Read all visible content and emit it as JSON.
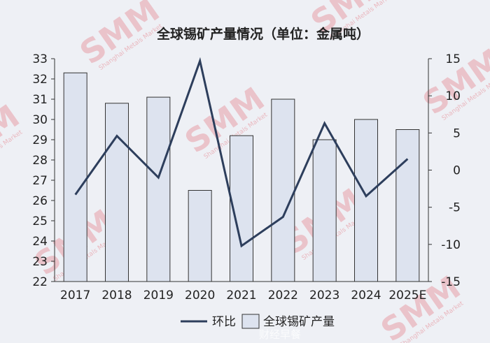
{
  "chart_data": {
    "type": "bar",
    "title": "全球锡矿产量情况（单位：金属吨）",
    "categories": [
      "2017",
      "2018",
      "2019",
      "2020",
      "2021",
      "2022",
      "2023",
      "2024",
      "2025E"
    ],
    "series": [
      {
        "name": "全球锡矿产量",
        "type": "bar",
        "axis": "left",
        "color": "#dde3ef",
        "values": [
          32.3,
          30.8,
          31.1,
          26.5,
          29.2,
          31.0,
          29.0,
          30.0,
          29.5
        ]
      },
      {
        "name": "环比",
        "type": "line",
        "axis": "right",
        "color": "#2d3e5c",
        "values": [
          -3.3,
          4.6,
          -1.0,
          14.7,
          -10.2,
          -6.3,
          6.3,
          -3.5,
          1.5
        ]
      }
    ],
    "y_left": {
      "lim": [
        22,
        33
      ],
      "ticks": [
        "22",
        "23",
        "24",
        "25",
        "26",
        "27",
        "28",
        "29",
        "30",
        "31",
        "32",
        "33"
      ]
    },
    "y_right": {
      "lim": [
        -15,
        15
      ],
      "ticks": [
        "-15",
        "-10",
        "-5",
        "0",
        "5",
        "10",
        "15"
      ]
    },
    "grid": false,
    "legend": {
      "placement": "bottom-center"
    }
  },
  "watermark": {
    "logo": "SMM",
    "subtext": "Shanghai Metals Market"
  },
  "credit": "财经早餐"
}
